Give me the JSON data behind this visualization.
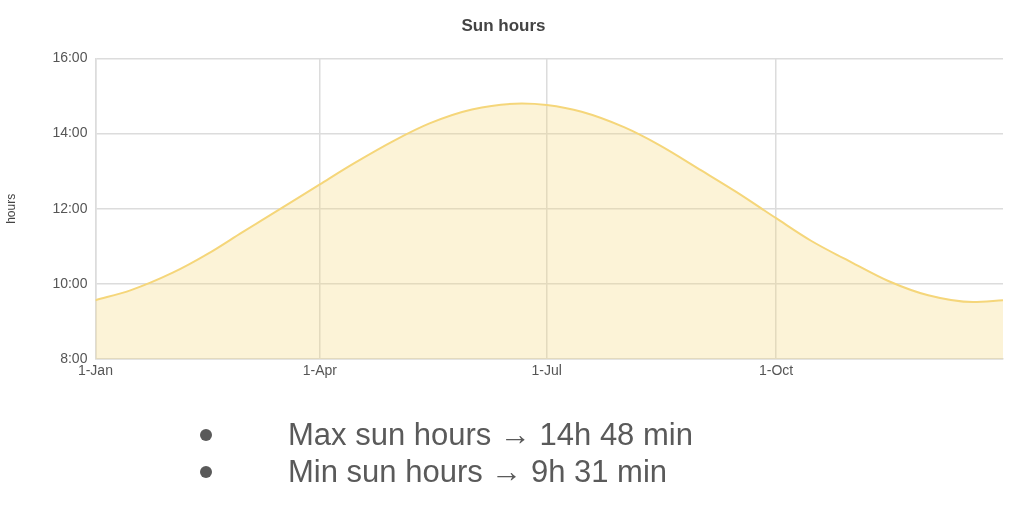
{
  "chart_data": {
    "type": "area",
    "title": "Sun hours",
    "ylabel": "hours",
    "x": [
      "--01-01",
      "--01-15",
      "--02-01",
      "--02-15",
      "--03-01",
      "--03-15",
      "--04-01",
      "--04-15",
      "--05-01",
      "--05-15",
      "--06-01",
      "--06-21",
      "--07-01",
      "--07-15",
      "--08-01",
      "--08-15",
      "--09-01",
      "--09-15",
      "--10-01",
      "--10-15",
      "--11-01",
      "--11-15",
      "--12-01",
      "--12-19",
      "--12-31"
    ],
    "values": [
      9.57,
      9.83,
      10.3,
      10.8,
      11.38,
      11.95,
      12.65,
      13.22,
      13.82,
      14.27,
      14.64,
      14.8,
      14.76,
      14.58,
      14.17,
      13.7,
      13.02,
      12.45,
      11.75,
      11.15,
      10.55,
      10.08,
      9.7,
      9.52,
      9.57
    ],
    "color": "#f5d67a",
    "xlim": [
      "--01-01",
      "--12-31"
    ],
    "xticks": [
      {
        "value": "--01-01",
        "label": "1-Jan"
      },
      {
        "value": "--04-01",
        "label": "1-Apr"
      },
      {
        "value": "--07-01",
        "label": "1-Jul"
      },
      {
        "value": "--10-01",
        "label": "1-Oct"
      }
    ],
    "ylim": [
      8,
      16
    ],
    "yticks": [
      {
        "value": 8,
        "label": "8:00"
      },
      {
        "value": 10,
        "label": "10:00"
      },
      {
        "value": 12,
        "label": "12:00"
      },
      {
        "value": 14,
        "label": "14:00"
      },
      {
        "value": 16,
        "label": "16:00"
      }
    ],
    "grid": true,
    "marker": "none",
    "annotations": [
      "Max sun hours → 14h 48 min",
      "Min sun hours → 9h 31 min"
    ]
  }
}
